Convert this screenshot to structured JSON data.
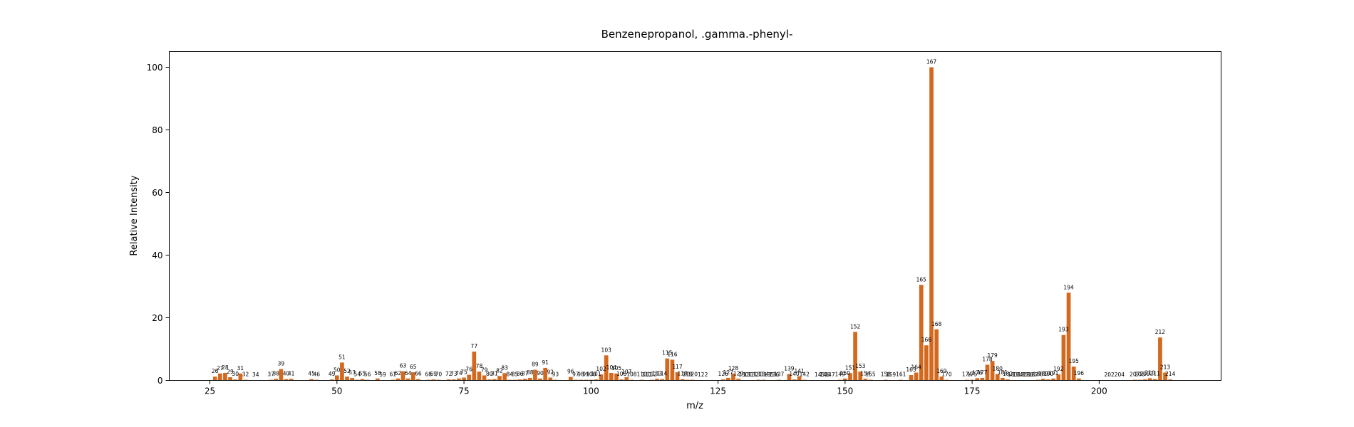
{
  "chart_data": {
    "type": "bar",
    "title": "Benzenepropanol, .gamma.-phenyl-",
    "xlabel": "m/z",
    "ylabel": "Relative Intensity",
    "xlim": [
      17,
      224
    ],
    "ylim": [
      0,
      105
    ],
    "xticks": [
      25,
      50,
      75,
      100,
      125,
      150,
      175,
      200
    ],
    "yticks": [
      0,
      20,
      40,
      60,
      80,
      100
    ],
    "grid": false,
    "bar_color": "#d2691e",
    "peaks": [
      {
        "mz": 26,
        "intensity": 1.2
      },
      {
        "mz": 27,
        "intensity": 2.2
      },
      {
        "mz": 28,
        "intensity": 2.4
      },
      {
        "mz": 29,
        "intensity": 1.0
      },
      {
        "mz": 30,
        "intensity": 0.3
      },
      {
        "mz": 31,
        "intensity": 2.2
      },
      {
        "mz": 32,
        "intensity": 0.2
      },
      {
        "mz": 34,
        "intensity": 0.1
      },
      {
        "mz": 37,
        "intensity": 0.2
      },
      {
        "mz": 38,
        "intensity": 0.5
      },
      {
        "mz": 39,
        "intensity": 3.6
      },
      {
        "mz": 40,
        "intensity": 0.4
      },
      {
        "mz": 41,
        "intensity": 0.5
      },
      {
        "mz": 45,
        "intensity": 0.4
      },
      {
        "mz": 46,
        "intensity": 0.2
      },
      {
        "mz": 49,
        "intensity": 0.3
      },
      {
        "mz": 50,
        "intensity": 1.6
      },
      {
        "mz": 51,
        "intensity": 5.7
      },
      {
        "mz": 52,
        "intensity": 1.2
      },
      {
        "mz": 53,
        "intensity": 0.8
      },
      {
        "mz": 54,
        "intensity": 0.2
      },
      {
        "mz": 55,
        "intensity": 0.4
      },
      {
        "mz": 56,
        "intensity": 0.2
      },
      {
        "mz": 58,
        "intensity": 0.6
      },
      {
        "mz": 59,
        "intensity": 0.1
      },
      {
        "mz": 61,
        "intensity": 0.2
      },
      {
        "mz": 62,
        "intensity": 0.6
      },
      {
        "mz": 63,
        "intensity": 2.9
      },
      {
        "mz": 64,
        "intensity": 0.6
      },
      {
        "mz": 65,
        "intensity": 2.6
      },
      {
        "mz": 66,
        "intensity": 0.4
      },
      {
        "mz": 68,
        "intensity": 0.2
      },
      {
        "mz": 69,
        "intensity": 0.3
      },
      {
        "mz": 70,
        "intensity": 0.2
      },
      {
        "mz": 72,
        "intensity": 0.3
      },
      {
        "mz": 73,
        "intensity": 0.3
      },
      {
        "mz": 74,
        "intensity": 0.6
      },
      {
        "mz": 75,
        "intensity": 0.9
      },
      {
        "mz": 76,
        "intensity": 1.8
      },
      {
        "mz": 77,
        "intensity": 9.2
      },
      {
        "mz": 78,
        "intensity": 2.8
      },
      {
        "mz": 79,
        "intensity": 1.6
      },
      {
        "mz": 80,
        "intensity": 0.3
      },
      {
        "mz": 81,
        "intensity": 0.4
      },
      {
        "mz": 82,
        "intensity": 1.4
      },
      {
        "mz": 83,
        "intensity": 2.3
      },
      {
        "mz": 84,
        "intensity": 0.2
      },
      {
        "mz": 85,
        "intensity": 0.2
      },
      {
        "mz": 86,
        "intensity": 0.3
      },
      {
        "mz": 87,
        "intensity": 0.5
      },
      {
        "mz": 88,
        "intensity": 0.8
      },
      {
        "mz": 89,
        "intensity": 3.4
      },
      {
        "mz": 90,
        "intensity": 0.6
      },
      {
        "mz": 91,
        "intensity": 4.0
      },
      {
        "mz": 92,
        "intensity": 0.9
      },
      {
        "mz": 93,
        "intensity": 0.2
      },
      {
        "mz": 96,
        "intensity": 1.1
      },
      {
        "mz": 97,
        "intensity": 0.2
      },
      {
        "mz": 98,
        "intensity": 0.2
      },
      {
        "mz": 99,
        "intensity": 0.2
      },
      {
        "mz": 100,
        "intensity": 0.2
      },
      {
        "mz": 101,
        "intensity": 0.3
      },
      {
        "mz": 102,
        "intensity": 1.9
      },
      {
        "mz": 103,
        "intensity": 8.0
      },
      {
        "mz": 104,
        "intensity": 2.4
      },
      {
        "mz": 105,
        "intensity": 2.2
      },
      {
        "mz": 106,
        "intensity": 0.3
      },
      {
        "mz": 107,
        "intensity": 1.0
      },
      {
        "mz": 108,
        "intensity": 0.2
      },
      {
        "mz": 110,
        "intensity": 0.2
      },
      {
        "mz": 111,
        "intensity": 0.1
      },
      {
        "mz": 112,
        "intensity": 0.2
      },
      {
        "mz": 113,
        "intensity": 0.5
      },
      {
        "mz": 114,
        "intensity": 0.4
      },
      {
        "mz": 115,
        "intensity": 7.0
      },
      {
        "mz": 116,
        "intensity": 6.6
      },
      {
        "mz": 117,
        "intensity": 2.6
      },
      {
        "mz": 118,
        "intensity": 0.4
      },
      {
        "mz": 119,
        "intensity": 0.2
      },
      {
        "mz": 120,
        "intensity": 0.2
      },
      {
        "mz": 122,
        "intensity": 0.1
      },
      {
        "mz": 126,
        "intensity": 0.3
      },
      {
        "mz": 127,
        "intensity": 0.8
      },
      {
        "mz": 128,
        "intensity": 2.2
      },
      {
        "mz": 129,
        "intensity": 0.5
      },
      {
        "mz": 130,
        "intensity": 0.1
      },
      {
        "mz": 131,
        "intensity": 0.1
      },
      {
        "mz": 132,
        "intensity": 0.1
      },
      {
        "mz": 133,
        "intensity": 0.2
      },
      {
        "mz": 134,
        "intensity": 0.2
      },
      {
        "mz": 135,
        "intensity": 0.1
      },
      {
        "mz": 136,
        "intensity": 0.1
      },
      {
        "mz": 137,
        "intensity": 0.2
      },
      {
        "mz": 139,
        "intensity": 2.0
      },
      {
        "mz": 140,
        "intensity": 0.3
      },
      {
        "mz": 141,
        "intensity": 1.3
      },
      {
        "mz": 142,
        "intensity": 0.2
      },
      {
        "mz": 145,
        "intensity": 0.1
      },
      {
        "mz": 146,
        "intensity": 0.1
      },
      {
        "mz": 147,
        "intensity": 0.1
      },
      {
        "mz": 149,
        "intensity": 0.2
      },
      {
        "mz": 150,
        "intensity": 0.6
      },
      {
        "mz": 151,
        "intensity": 2.3
      },
      {
        "mz": 152,
        "intensity": 15.5
      },
      {
        "mz": 153,
        "intensity": 2.8
      },
      {
        "mz": 154,
        "intensity": 0.5
      },
      {
        "mz": 155,
        "intensity": 0.2
      },
      {
        "mz": 158,
        "intensity": 0.2
      },
      {
        "mz": 159,
        "intensity": 0.1
      },
      {
        "mz": 161,
        "intensity": 0.2
      },
      {
        "mz": 163,
        "intensity": 1.7
      },
      {
        "mz": 164,
        "intensity": 2.5
      },
      {
        "mz": 165,
        "intensity": 30.5
      },
      {
        "mz": 166,
        "intensity": 11.2
      },
      {
        "mz": 167,
        "intensity": 100
      },
      {
        "mz": 168,
        "intensity": 16.3
      },
      {
        "mz": 169,
        "intensity": 1.2
      },
      {
        "mz": 170,
        "intensity": 0.2
      },
      {
        "mz": 174,
        "intensity": 0.2
      },
      {
        "mz": 175,
        "intensity": 0.2
      },
      {
        "mz": 176,
        "intensity": 0.7
      },
      {
        "mz": 177,
        "intensity": 0.8
      },
      {
        "mz": 178,
        "intensity": 5.0
      },
      {
        "mz": 179,
        "intensity": 6.2
      },
      {
        "mz": 180,
        "intensity": 2.0
      },
      {
        "mz": 181,
        "intensity": 0.8
      },
      {
        "mz": 182,
        "intensity": 0.3
      },
      {
        "mz": 183,
        "intensity": 0.1
      },
      {
        "mz": 184,
        "intensity": 0.1
      },
      {
        "mz": 185,
        "intensity": 0.1
      },
      {
        "mz": 186,
        "intensity": 0.1
      },
      {
        "mz": 187,
        "intensity": 0.1
      },
      {
        "mz": 188,
        "intensity": 0.2
      },
      {
        "mz": 189,
        "intensity": 0.5
      },
      {
        "mz": 190,
        "intensity": 0.3
      },
      {
        "mz": 191,
        "intensity": 0.6
      },
      {
        "mz": 192,
        "intensity": 1.9
      },
      {
        "mz": 193,
        "intensity": 14.5
      },
      {
        "mz": 194,
        "intensity": 28.0
      },
      {
        "mz": 195,
        "intensity": 4.4
      },
      {
        "mz": 196,
        "intensity": 0.6
      },
      {
        "mz": 202,
        "intensity": 0.1
      },
      {
        "mz": 204,
        "intensity": 0.1
      },
      {
        "mz": 207,
        "intensity": 0.2
      },
      {
        "mz": 208,
        "intensity": 0.2
      },
      {
        "mz": 209,
        "intensity": 0.3
      },
      {
        "mz": 210,
        "intensity": 0.7
      },
      {
        "mz": 211,
        "intensity": 0.4
      },
      {
        "mz": 212,
        "intensity": 13.7
      },
      {
        "mz": 213,
        "intensity": 2.5
      },
      {
        "mz": 214,
        "intensity": 0.3
      }
    ]
  }
}
